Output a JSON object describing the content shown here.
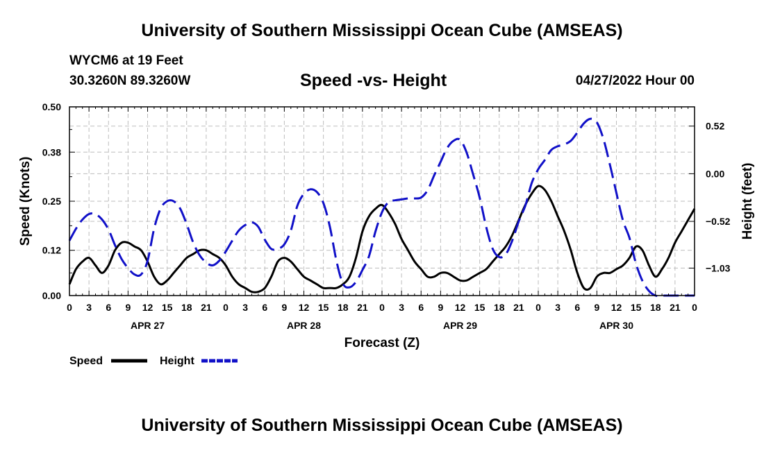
{
  "header": {
    "title": "University of Southern Mississippi Ocean Cube (AMSEAS)",
    "station": "WYCM6 at 19 Feet",
    "coords": "30.3260N  89.3260W",
    "date": "04/27/2022 Hour 00"
  },
  "footer": {
    "title": "University of Southern Mississippi Ocean Cube (AMSEAS)"
  },
  "chart_data": {
    "type": "line",
    "title": "Speed -vs- Height",
    "xlabel": "Forecast (Z)",
    "ylabel": "Speed (Knots)",
    "ylabel_right": "Height (feet)",
    "x_unit": "hours from 04/27 00Z",
    "xlim": [
      0,
      96
    ],
    "ylim": [
      0,
      0.5
    ],
    "ylim_right": [
      -1.33,
      0.73
    ],
    "yticks": [
      0.0,
      0.12,
      0.25,
      0.38,
      0.5
    ],
    "yticklabels": [
      "0.00",
      "0.12",
      "0.25",
      "0.38",
      "0.50"
    ],
    "yticks_right": [
      -1.03,
      -0.52,
      0.0,
      0.52
    ],
    "yticklabels_right": [
      "−1.03",
      "−0.52",
      "0.00",
      "0.52"
    ],
    "xticks": [
      0,
      3,
      6,
      9,
      12,
      15,
      18,
      21,
      24,
      27,
      30,
      33,
      36,
      39,
      42,
      45,
      48,
      51,
      54,
      57,
      60,
      63,
      66,
      69,
      72,
      75,
      78,
      81,
      84,
      87,
      90,
      93,
      96
    ],
    "xticklabels": [
      "0",
      "3",
      "6",
      "9",
      "12",
      "15",
      "18",
      "21",
      "0",
      "3",
      "6",
      "9",
      "12",
      "15",
      "18",
      "21",
      "0",
      "3",
      "6",
      "9",
      "12",
      "15",
      "18",
      "21",
      "0",
      "3",
      "6",
      "9",
      "12",
      "15",
      "18",
      "21",
      "0"
    ],
    "day_labels": [
      {
        "label": "APR 27",
        "x": 12
      },
      {
        "label": "APR 28",
        "x": 36
      },
      {
        "label": "APR 29",
        "x": 60
      },
      {
        "label": "APR 30",
        "x": 84
      }
    ],
    "grid": true,
    "legend": "bottom-left",
    "series": [
      {
        "name": "Speed",
        "axis": "left",
        "color": "#000000",
        "dash": "solid",
        "x": [
          0,
          1,
          2,
          3,
          4,
          5,
          6,
          7,
          8,
          9,
          10,
          11,
          12,
          13,
          14,
          15,
          16,
          17,
          18,
          19,
          20,
          21,
          22,
          23,
          24,
          25,
          26,
          27,
          28,
          29,
          30,
          31,
          32,
          33,
          34,
          35,
          36,
          37,
          38,
          39,
          40,
          41,
          42,
          43,
          44,
          45,
          46,
          47,
          48,
          49,
          50,
          51,
          52,
          53,
          54,
          55,
          56,
          57,
          58,
          59,
          60,
          61,
          62,
          63,
          64,
          65,
          66,
          67,
          68,
          69,
          70,
          71,
          72,
          73,
          74,
          75,
          76,
          77,
          78,
          79,
          80,
          81,
          82,
          83,
          84,
          85,
          86,
          87,
          88,
          89,
          90,
          91,
          92,
          93,
          94,
          95,
          96
        ],
        "values": [
          0.03,
          0.07,
          0.09,
          0.1,
          0.08,
          0.06,
          0.08,
          0.12,
          0.14,
          0.14,
          0.13,
          0.12,
          0.09,
          0.05,
          0.03,
          0.04,
          0.06,
          0.08,
          0.1,
          0.11,
          0.12,
          0.12,
          0.11,
          0.1,
          0.08,
          0.05,
          0.03,
          0.02,
          0.01,
          0.01,
          0.02,
          0.05,
          0.09,
          0.1,
          0.09,
          0.07,
          0.05,
          0.04,
          0.03,
          0.02,
          0.02,
          0.02,
          0.03,
          0.05,
          0.1,
          0.17,
          0.21,
          0.23,
          0.24,
          0.22,
          0.19,
          0.15,
          0.12,
          0.09,
          0.07,
          0.05,
          0.05,
          0.06,
          0.06,
          0.05,
          0.04,
          0.04,
          0.05,
          0.06,
          0.07,
          0.09,
          0.11,
          0.13,
          0.16,
          0.2,
          0.24,
          0.27,
          0.29,
          0.28,
          0.25,
          0.21,
          0.17,
          0.12,
          0.06,
          0.02,
          0.02,
          0.05,
          0.06,
          0.06,
          0.07,
          0.08,
          0.1,
          0.13,
          0.12,
          0.08,
          0.05,
          0.07,
          0.1,
          0.14,
          0.17,
          0.2,
          0.23
        ]
      },
      {
        "name": "Height",
        "axis": "right",
        "color": "#1010c8",
        "dash": "dashed",
        "x": [
          0,
          1,
          2,
          3,
          4,
          5,
          6,
          7,
          8,
          9,
          10,
          11,
          12,
          13,
          14,
          15,
          16,
          17,
          18,
          19,
          20,
          21,
          22,
          23,
          24,
          25,
          26,
          27,
          28,
          29,
          30,
          31,
          32,
          33,
          34,
          35,
          36,
          37,
          38,
          39,
          40,
          41,
          42,
          43,
          44,
          45,
          46,
          47,
          48,
          49,
          50,
          51,
          52,
          53,
          54,
          55,
          56,
          57,
          58,
          59,
          60,
          61,
          62,
          63,
          64,
          65,
          66,
          67,
          68,
          69,
          70,
          71,
          72,
          73,
          74,
          75,
          76,
          77,
          78,
          79,
          80,
          81,
          82,
          83,
          84,
          85,
          86,
          87,
          88,
          89,
          90,
          91,
          92,
          93,
          94,
          95,
          96
        ],
        "values": [
          -0.73,
          -0.6,
          -0.5,
          -0.44,
          -0.44,
          -0.5,
          -0.61,
          -0.78,
          -0.93,
          -1.03,
          -1.1,
          -1.1,
          -0.95,
          -0.6,
          -0.38,
          -0.3,
          -0.3,
          -0.38,
          -0.55,
          -0.75,
          -0.89,
          -0.97,
          -1.0,
          -0.95,
          -0.85,
          -0.73,
          -0.62,
          -0.56,
          -0.53,
          -0.58,
          -0.72,
          -0.82,
          -0.82,
          -0.77,
          -0.62,
          -0.35,
          -0.22,
          -0.17,
          -0.2,
          -0.32,
          -0.58,
          -0.95,
          -1.2,
          -1.24,
          -1.18,
          -1.05,
          -0.9,
          -0.63,
          -0.42,
          -0.31,
          -0.29,
          -0.28,
          -0.27,
          -0.27,
          -0.26,
          -0.18,
          -0.02,
          0.13,
          0.28,
          0.36,
          0.37,
          0.23,
          -0.01,
          -0.26,
          -0.58,
          -0.82,
          -0.91,
          -0.88,
          -0.73,
          -0.52,
          -0.35,
          -0.1,
          0.05,
          0.15,
          0.26,
          0.3,
          0.32,
          0.36,
          0.45,
          0.55,
          0.6,
          0.56,
          0.38,
          0.1,
          -0.21,
          -0.51,
          -0.7,
          -0.98,
          -1.17,
          -1.28,
          -1.33,
          -1.34,
          -1.33,
          -1.33,
          -1.33,
          -1.33,
          -1.33
        ]
      }
    ]
  }
}
